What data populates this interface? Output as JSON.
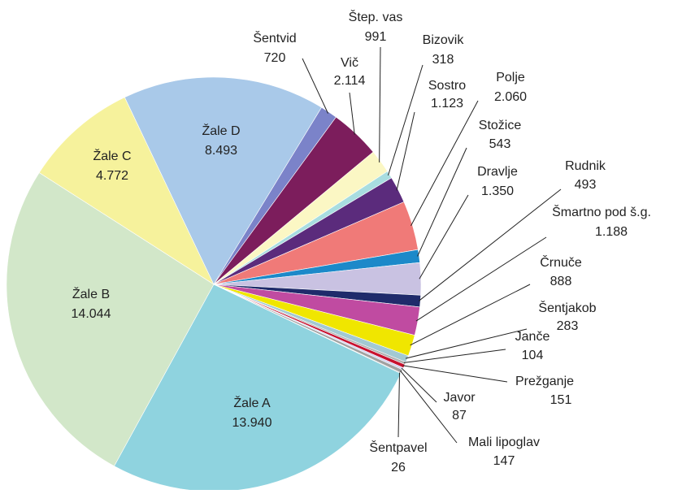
{
  "chart_data": {
    "type": "pie",
    "categories": [
      "Žale A",
      "Žale B",
      "Žale C",
      "Žale D",
      "Šentvid",
      "Vič",
      "Štep. vas",
      "Bizovik",
      "Sostro",
      "Polje",
      "Stožice",
      "Dravlje",
      "Rudnik",
      "Šmartno pod š.g.",
      "Črnuče",
      "Šentjakob",
      "Janče",
      "Prežganje",
      "Javor",
      "Mali lipoglav",
      "Šentpavel"
    ],
    "values": [
      13940,
      14044,
      4772,
      8493,
      720,
      2114,
      991,
      318,
      1123,
      2060,
      543,
      1350,
      493,
      1188,
      888,
      283,
      104,
      151,
      87,
      147,
      26
    ],
    "value_labels": [
      "13.940",
      "14.044",
      "4.772",
      "8.493",
      "720",
      "2.114",
      "991",
      "318",
      "1.123",
      "2.060",
      "543",
      "1.350",
      "493",
      "1.188",
      "888",
      "283",
      "104",
      "151",
      "87",
      "147",
      "26"
    ],
    "colors": [
      "#8fd3df",
      "#d2e7c9",
      "#f6f29c",
      "#a9c9e9",
      "#7b83c9",
      "#7c1d5c",
      "#fbf7c4",
      "#a8dde0",
      "#5b2b7c",
      "#f07a78",
      "#1c89c9",
      "#c9c2e2",
      "#1f2b6b",
      "#c04ba1",
      "#f0e600",
      "#a2c9d2",
      "#b1b1b1",
      "#c8102e",
      "#d1d1f1",
      "#a1a1a1",
      "#828282"
    ]
  }
}
